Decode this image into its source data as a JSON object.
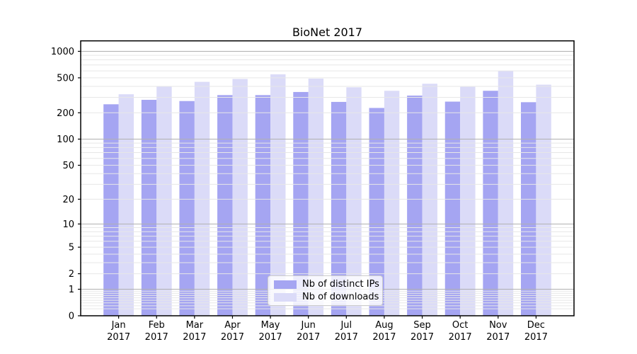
{
  "chart_data": {
    "type": "bar",
    "title": "BioNet 2017",
    "xlabel": "",
    "ylabel": "",
    "yscale": "log1p",
    "ylim": [
      0,
      1315
    ],
    "yticks": [
      0,
      1,
      2,
      5,
      10,
      20,
      50,
      100,
      200,
      500,
      1000
    ],
    "grid": "on",
    "legend_position": "lower center",
    "categories": [
      "Jan 2017",
      "Feb 2017",
      "Mar 2017",
      "Apr 2017",
      "May 2017",
      "Jun 2017",
      "Jul 2017",
      "Aug 2017",
      "Sep 2017",
      "Oct 2017",
      "Nov 2017",
      "Dec 2017"
    ],
    "series": [
      {
        "name": "Nb of distinct IPs",
        "color": "#a5a5f2",
        "values": [
          250,
          281,
          272,
          318,
          318,
          345,
          266,
          227,
          314,
          268,
          356,
          264
        ]
      },
      {
        "name": "Nb of downloads",
        "color": "#dbdbf8",
        "values": [
          325,
          398,
          450,
          485,
          548,
          490,
          390,
          356,
          428,
          395,
          602,
          418
        ]
      }
    ],
    "colors": {
      "grid_major": "#b0b0b0",
      "grid_minor": "#e7e7e7",
      "axis": "#000000",
      "background": "#ffffff"
    }
  }
}
